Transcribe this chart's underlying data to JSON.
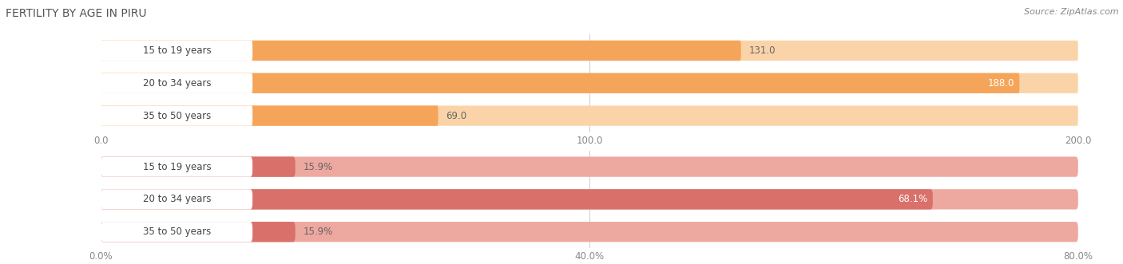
{
  "title": "FERTILITY BY AGE IN PIRU",
  "source": "Source: ZipAtlas.com",
  "top_chart": {
    "categories": [
      "15 to 19 years",
      "20 to 34 years",
      "35 to 50 years"
    ],
    "values": [
      131.0,
      188.0,
      69.0
    ],
    "bar_color": "#f5a55a",
    "bar_color_light": "#fad4a8",
    "label_bg": "#ffffff",
    "xlim": [
      0,
      200
    ],
    "xticks": [
      0.0,
      100.0,
      200.0
    ],
    "xtick_labels": [
      "0.0",
      "100.0",
      "200.0"
    ]
  },
  "bottom_chart": {
    "categories": [
      "15 to 19 years",
      "20 to 34 years",
      "35 to 50 years"
    ],
    "values": [
      15.9,
      68.1,
      15.9
    ],
    "bar_color": "#d9706a",
    "bar_color_light": "#eda89f",
    "label_bg": "#ffffff",
    "xlim": [
      0,
      80
    ],
    "xticks": [
      0.0,
      40.0,
      80.0
    ],
    "xtick_labels": [
      "0.0%",
      "40.0%",
      "80.0%"
    ]
  },
  "bg_color": "#ffffff",
  "bar_bg_color": "#e8e8e8",
  "title_color": "#555555",
  "label_color": "#444444",
  "value_color_inside": "#ffffff",
  "value_color_outside": "#666666",
  "tick_color": "#888888",
  "source_color": "#888888",
  "title_fontsize": 10,
  "label_fontsize": 8.5,
  "value_fontsize": 8.5,
  "tick_fontsize": 8.5,
  "source_fontsize": 8
}
